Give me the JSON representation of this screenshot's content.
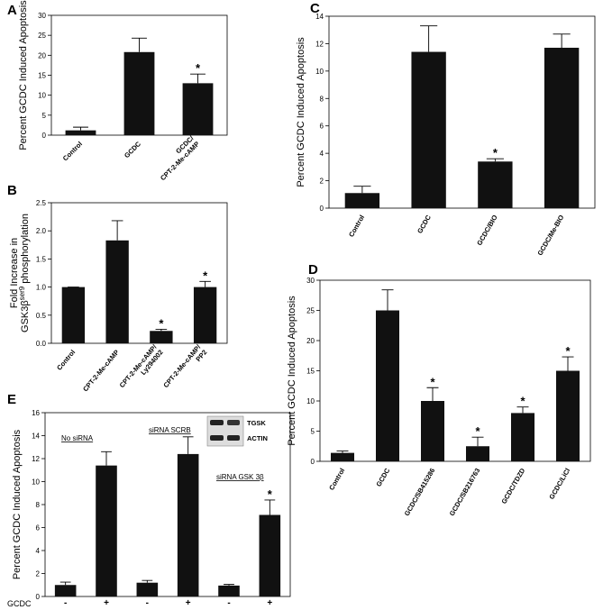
{
  "chart_data": [
    {
      "type": "bar",
      "panel_label": "A",
      "ylabel": "Percent GCDC Induced Apoptosis",
      "categories": [
        [
          "Control"
        ],
        [
          "GCDC"
        ],
        [
          "GCDC/",
          "CPT-2-Me-cAMP"
        ]
      ],
      "values": [
        1.2,
        20.8,
        13
      ],
      "errors": [
        0.8,
        3.5,
        2.3
      ],
      "significance": [
        null,
        null,
        "*"
      ],
      "color": "#111111",
      "ylim": [
        0,
        30
      ],
      "yticks": [
        0,
        5,
        10,
        15,
        20,
        25,
        30
      ],
      "grid": false,
      "label_rotation": -45
    },
    {
      "type": "bar",
      "panel_label": "B",
      "ylabel": "Fold Increase in",
      "ylabel_line2": {
        "text": "GSK3β",
        "sup": "ser9",
        "rest": " phosphorylation"
      },
      "categories": [
        [
          "Control"
        ],
        [
          "CPT-2-Me-cAMP"
        ],
        [
          "CPT-2-Me-cAMP/",
          "Ly294002"
        ],
        [
          "CPT-2-Me-cAMP/",
          "PP2"
        ]
      ],
      "values": [
        1.0,
        1.83,
        0.22,
        1.0
      ],
      "errors": [
        0,
        0.35,
        0.03,
        0.1
      ],
      "significance": [
        null,
        null,
        "*",
        "*"
      ],
      "color": "#111111",
      "ylim": [
        0,
        2.5
      ],
      "yticks": [
        {
          "value": 0,
          "label": "0.0"
        },
        {
          "value": 0.5,
          "label": "0.5"
        },
        {
          "value": 1,
          "label": "1.0"
        },
        {
          "value": 1.5,
          "label": "1.5"
        },
        {
          "value": 2,
          "label": "2.0"
        },
        {
          "value": 2.5,
          "label": "2.5"
        }
      ],
      "grid": false,
      "label_rotation": -50
    },
    {
      "type": "bar",
      "panel_label": "C",
      "ylabel": "Percent GCDC Induced Apoptosis",
      "categories": [
        [
          "Control"
        ],
        [
          "GCDC"
        ],
        [
          "GCDC/BIO"
        ],
        [
          "GCDC/Me-BIO"
        ]
      ],
      "values": [
        1.1,
        11.4,
        3.4,
        11.7
      ],
      "errors": [
        0.5,
        1.9,
        0.2,
        1.0
      ],
      "significance": [
        null,
        null,
        "*",
        null
      ],
      "color": "#111111",
      "ylim": [
        0,
        14
      ],
      "yticks": [
        0,
        2,
        4,
        6,
        8,
        10,
        12,
        14
      ],
      "grid": false,
      "label_rotation": -60
    },
    {
      "type": "bar",
      "panel_label": "D",
      "ylabel": "Percent GCDC Induced Apoptosis",
      "categories": [
        [
          "Control"
        ],
        [
          "GCDC"
        ],
        [
          "GCDC/SB415286"
        ],
        [
          "GCDC/SB216763"
        ],
        [
          "GCDC/TDZD"
        ],
        [
          "GCDC/LiCl"
        ]
      ],
      "values": [
        1.4,
        25,
        10,
        2.5,
        8,
        15
      ],
      "errors": [
        0.3,
        3.4,
        2.2,
        1.5,
        1.0,
        2.3
      ],
      "significance": [
        null,
        null,
        "*",
        "*",
        "*",
        "*"
      ],
      "color": "#111111",
      "ylim": [
        0,
        30
      ],
      "yticks": [
        0,
        5,
        10,
        15,
        20,
        25,
        30
      ],
      "grid": false,
      "label_rotation": -60
    },
    {
      "type": "bar",
      "panel_label": "E",
      "ylabel": "Percent GCDC Induced Apoptosis",
      "xlabel": "GCDC",
      "categories": [
        [
          "-"
        ],
        [
          "+"
        ],
        [
          "-"
        ],
        [
          "+"
        ],
        [
          "-"
        ],
        [
          "+"
        ]
      ],
      "values": [
        1.0,
        11.4,
        1.2,
        12.4,
        0.95,
        7.1
      ],
      "errors": [
        0.25,
        1.2,
        0.2,
        1.5,
        0.1,
        1.3
      ],
      "significance": [
        null,
        null,
        null,
        null,
        null,
        "*"
      ],
      "annotations": [
        "No siRNA",
        "siRNA SCRB",
        "siRNA GSK 3β"
      ],
      "inset_labels": [
        "TGSK",
        "ACTIN"
      ],
      "color": "#111111",
      "ylim": [
        0,
        16
      ],
      "yticks": [
        0,
        2,
        4,
        6,
        8,
        10,
        12,
        14,
        16
      ],
      "grid": false,
      "label_rotation": 0
    }
  ]
}
